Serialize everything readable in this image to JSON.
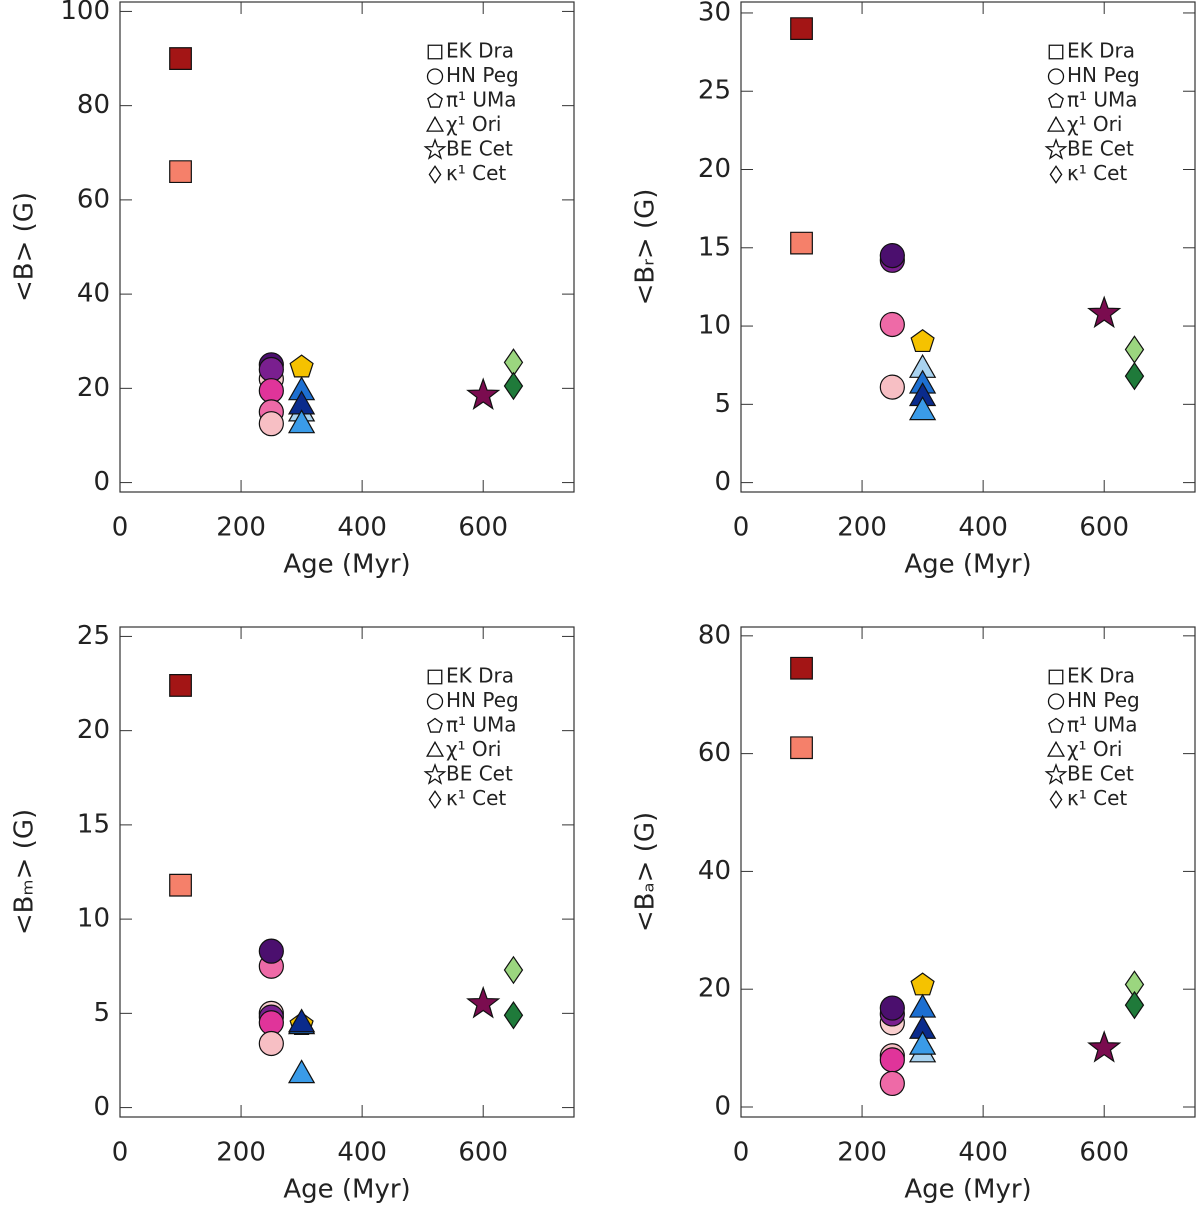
{
  "chart_data": [
    {
      "type": "scatter",
      "xlabel": "Age (Myr)",
      "ylabel": "<B> (G)",
      "xlim": [
        0,
        750
      ],
      "ylim": [
        -2,
        102
      ],
      "xticks": [
        0,
        200,
        400,
        600
      ],
      "yticks": [
        0,
        20,
        40,
        60,
        80,
        100
      ],
      "series": [
        {
          "name": "EK Dra",
          "marker": "square",
          "x": [
            100,
            100
          ],
          "values": [
            90,
            66
          ],
          "colors": [
            "#a31515",
            "#f5806a"
          ]
        },
        {
          "name": "HN Peg",
          "marker": "circle",
          "x": [
            250,
            250,
            250,
            250,
            250,
            250
          ],
          "values": [
            22,
            25,
            24,
            19.5,
            15,
            12.5
          ],
          "colors": [
            "#f9cfcf",
            "#4b0f6e",
            "#7a1f8f",
            "#e0349a",
            "#ee6aa7",
            "#f7bfc4"
          ]
        },
        {
          "name": "π¹ UMa",
          "marker": "pentagon",
          "x": [
            300
          ],
          "values": [
            24.5
          ],
          "colors": [
            "#f5c200"
          ]
        },
        {
          "name": "χ¹ Ori",
          "marker": "triangle",
          "x": [
            300,
            300,
            300,
            300
          ],
          "values": [
            15,
            19.5,
            16.5,
            12.5
          ],
          "colors": [
            "#a9d3f0",
            "#1d6fd1",
            "#0a2b8c",
            "#3a9be8"
          ]
        },
        {
          "name": "BE Cet",
          "marker": "star",
          "x": [
            600
          ],
          "values": [
            18.5
          ],
          "colors": [
            "#7a0c4f"
          ]
        },
        {
          "name": "κ¹ Cet",
          "marker": "diamond",
          "x": [
            650,
            650
          ],
          "values": [
            25.5,
            20.5
          ],
          "colors": [
            "#9bd67f",
            "#1f7a3a"
          ]
        }
      ]
    },
    {
      "type": "scatter",
      "xlabel": "Age (Myr)",
      "ylabel": "<Bᵣ> (G)",
      "xlim": [
        0,
        750
      ],
      "ylim": [
        -0.6,
        30.7
      ],
      "xticks": [
        0,
        200,
        400,
        600
      ],
      "yticks": [
        0,
        5,
        10,
        15,
        20,
        25,
        30
      ],
      "series": [
        {
          "name": "EK Dra",
          "marker": "square",
          "x": [
            100,
            100
          ],
          "values": [
            29,
            15.3
          ],
          "colors": [
            "#a31515",
            "#f5806a"
          ]
        },
        {
          "name": "HN Peg",
          "marker": "circle",
          "x": [
            250,
            250,
            250,
            250
          ],
          "values": [
            14.2,
            14.5,
            10.1,
            6.1
          ],
          "colors": [
            "#7a1f8f",
            "#4b0f6e",
            "#ee6aa7",
            "#f7bfc4"
          ]
        },
        {
          "name": "π¹ UMa",
          "marker": "pentagon",
          "x": [
            300
          ],
          "values": [
            9
          ],
          "colors": [
            "#f5c200"
          ]
        },
        {
          "name": "χ¹ Ori",
          "marker": "triangle",
          "x": [
            300,
            300,
            300,
            300
          ],
          "values": [
            7.3,
            6.3,
            5.5,
            4.6
          ],
          "colors": [
            "#a9d3f0",
            "#1d6fd1",
            "#0a2b8c",
            "#3a9be8"
          ]
        },
        {
          "name": "BE Cet",
          "marker": "star",
          "x": [
            600
          ],
          "values": [
            10.8
          ],
          "colors": [
            "#7a0c4f"
          ]
        },
        {
          "name": "κ¹ Cet",
          "marker": "diamond",
          "x": [
            650,
            650
          ],
          "values": [
            8.5,
            6.8
          ],
          "colors": [
            "#9bd67f",
            "#1f7a3a"
          ]
        }
      ]
    },
    {
      "type": "scatter",
      "xlabel": "Age (Myr)",
      "ylabel": "<Bₘ> (G)",
      "xlim": [
        0,
        750
      ],
      "ylim": [
        -0.5,
        25.5
      ],
      "xticks": [
        0,
        200,
        400,
        600
      ],
      "yticks": [
        0,
        5,
        10,
        15,
        20,
        25
      ],
      "series": [
        {
          "name": "EK Dra",
          "marker": "square",
          "x": [
            100,
            100
          ],
          "values": [
            22.4,
            11.8
          ],
          "colors": [
            "#a31515",
            "#f5806a"
          ]
        },
        {
          "name": "HN Peg",
          "marker": "circle",
          "x": [
            250,
            250,
            250,
            250,
            250,
            250
          ],
          "values": [
            5.0,
            7.5,
            8.3,
            4.8,
            4.5,
            3.4
          ],
          "colors": [
            "#f9cfcf",
            "#ee6aa7",
            "#4b0f6e",
            "#7a1f8f",
            "#e0349a",
            "#f7bfc4"
          ]
        },
        {
          "name": "π¹ UMa",
          "marker": "pentagon",
          "x": [
            300
          ],
          "values": [
            4.4
          ],
          "colors": [
            "#f5c200"
          ]
        },
        {
          "name": "χ¹ Ori",
          "marker": "triangle",
          "x": [
            300,
            300,
            300
          ],
          "values": [
            4.4,
            4.5,
            1.8
          ],
          "colors": [
            "#1d6fd1",
            "#0a2b8c",
            "#3a9be8"
          ]
        },
        {
          "name": "BE Cet",
          "marker": "star",
          "x": [
            600
          ],
          "values": [
            5.5
          ],
          "colors": [
            "#7a0c4f"
          ]
        },
        {
          "name": "κ¹ Cet",
          "marker": "diamond",
          "x": [
            650,
            650
          ],
          "values": [
            7.3,
            4.9
          ],
          "colors": [
            "#9bd67f",
            "#1f7a3a"
          ]
        }
      ]
    },
    {
      "type": "scatter",
      "xlabel": "Age (Myr)",
      "ylabel": "<Bₐ> (G)",
      "xlim": [
        0,
        750
      ],
      "ylim": [
        -1.7,
        81.5
      ],
      "xticks": [
        0,
        200,
        400,
        600
      ],
      "yticks": [
        0,
        20,
        40,
        60,
        80
      ],
      "series": [
        {
          "name": "EK Dra",
          "marker": "square",
          "x": [
            100,
            100
          ],
          "values": [
            74.5,
            61
          ],
          "colors": [
            "#a31515",
            "#f5806a"
          ]
        },
        {
          "name": "HN Peg",
          "marker": "circle",
          "x": [
            250,
            250,
            250,
            250,
            250,
            250
          ],
          "values": [
            14.3,
            15.8,
            16.8,
            8.7,
            8,
            4
          ],
          "colors": [
            "#f9cfcf",
            "#7a1f8f",
            "#4b0f6e",
            "#f7bfc4",
            "#e0349a",
            "#ee6aa7"
          ]
        },
        {
          "name": "π¹ UMa",
          "marker": "pentagon",
          "x": [
            300
          ],
          "values": [
            20.7
          ],
          "colors": [
            "#f5c200"
          ]
        },
        {
          "name": "χ¹ Ori",
          "marker": "triangle",
          "x": [
            300,
            300,
            300,
            300
          ],
          "values": [
            9.2,
            16.8,
            13.2,
            10.5
          ],
          "colors": [
            "#a9d3f0",
            "#1d6fd1",
            "#0a2b8c",
            "#3a9be8"
          ]
        },
        {
          "name": "BE Cet",
          "marker": "star",
          "x": [
            600
          ],
          "values": [
            10
          ],
          "colors": [
            "#7a0c4f"
          ]
        },
        {
          "name": "κ¹ Cet",
          "marker": "diamond",
          "x": [
            650,
            650
          ],
          "values": [
            20.8,
            17.3
          ],
          "colors": [
            "#9bd67f",
            "#1f7a3a"
          ]
        }
      ]
    }
  ]
}
